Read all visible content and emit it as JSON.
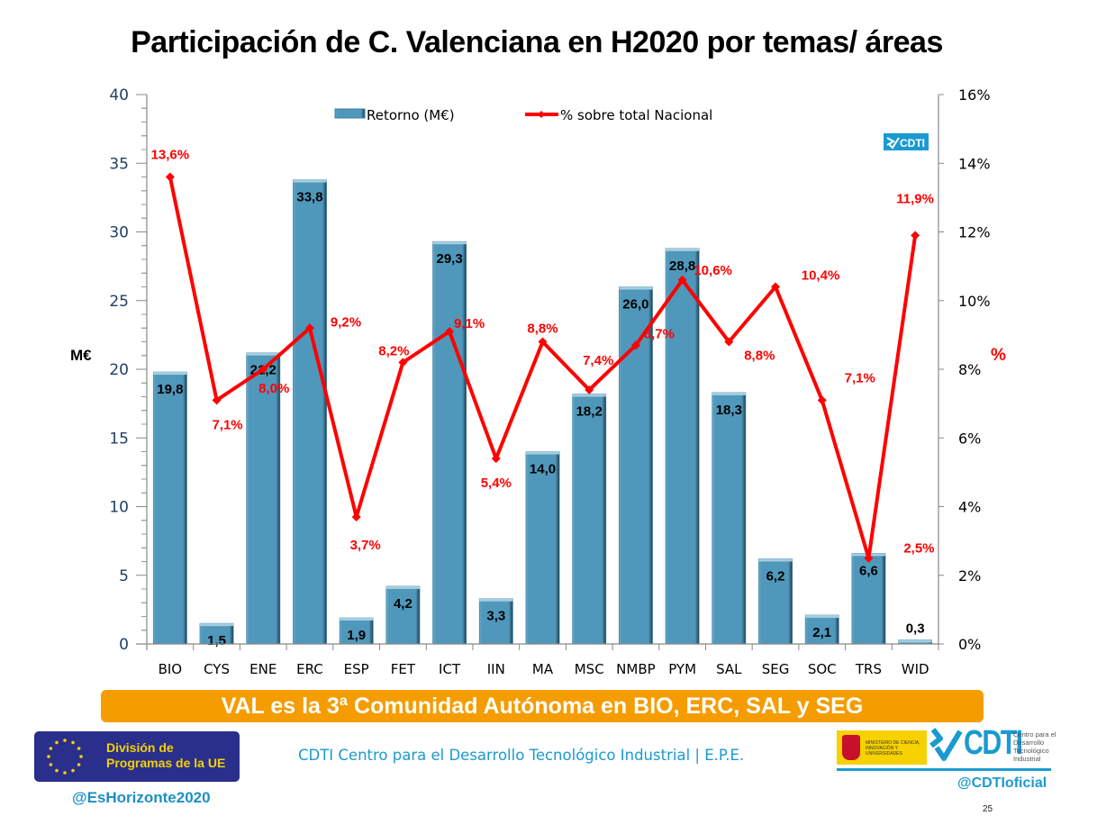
{
  "slide": {
    "title": "Participación de C. Valenciana en H2020 por temas/ áreas",
    "banner": "VAL es la 3ª Comunidad Autónoma en BIO, ERC, SAL y SEG",
    "page_number": "25"
  },
  "footer": {
    "eu_logo_line1": "División de",
    "eu_logo_line2": "Programas de la UE",
    "eu_handle": "@EsHorizonte2020",
    "cdti_text": "CDTI Centro para el Desarrollo Tecnológico Industrial | E.P.E.",
    "ministry_text": "MINISTERIO DE CIENCIA, INNOVACIÓN Y UNIVERSIDADES",
    "cdti_logo_word": "CDTI",
    "cdti_logo_sub": "Centro para el Desarrollo Tecnológico Industrial",
    "cdti_handle": "@CDTIoficial",
    "chart_watermark": "CDTI"
  },
  "colors": {
    "bar": "#4f98bb",
    "line": "#ff0000",
    "banner": "#f59c00",
    "left_axis_text": "#1f3f66",
    "cdti_blue": "#1a9ad0"
  },
  "chart_data": {
    "type": "bar",
    "title": "Participación de C. Valenciana en H2020 por temas/ áreas",
    "categories": [
      "BIO",
      "CYS",
      "ENE",
      "ERC",
      "ESP",
      "FET",
      "ICT",
      "IIN",
      "MA",
      "MSC",
      "NMBP",
      "PYM",
      "SAL",
      "SEG",
      "SOC",
      "TRS",
      "WID"
    ],
    "series": [
      {
        "name": "Retorno (M€)",
        "type": "bar",
        "axis": "left",
        "values": [
          19.8,
          1.5,
          21.2,
          33.8,
          1.9,
          4.2,
          29.3,
          3.3,
          14.0,
          18.2,
          26.0,
          28.8,
          18.3,
          6.2,
          2.1,
          6.6,
          0.3
        ],
        "labels": [
          "19,8",
          "1,5",
          "21,2",
          "33,8",
          "1,9",
          "4,2",
          "29,3",
          "3,3",
          "14,0",
          "18,2",
          "26,0",
          "28,8",
          "18,3",
          "6,2",
          "2,1",
          "6,6",
          "0,3"
        ]
      },
      {
        "name": "% sobre total Nacional",
        "type": "line",
        "axis": "right",
        "values": [
          13.6,
          7.1,
          8.0,
          9.2,
          3.7,
          8.2,
          9.1,
          5.4,
          8.8,
          7.4,
          8.7,
          10.6,
          8.8,
          10.4,
          7.1,
          2.5,
          11.9
        ],
        "labels": [
          "13,6%",
          "7,1%",
          "8,0%",
          "9,2%",
          "3,7%",
          "8,2%",
          "9,1%",
          "5,4%",
          "8,8%",
          "7,4%",
          "8,7%",
          "10,6%",
          "8,8%",
          "10,4%",
          "7,1%",
          "2,5%",
          "11,9%"
        ]
      }
    ],
    "ylabel": "M€",
    "ylim": [
      0,
      40
    ],
    "yticks": [
      "0",
      "5",
      "10",
      "15",
      "20",
      "25",
      "30",
      "35",
      "40"
    ],
    "y2label": "%",
    "y2lim": [
      0,
      16
    ],
    "y2ticks": [
      "0%",
      "2%",
      "4%",
      "6%",
      "8%",
      "10%",
      "12%",
      "14%",
      "16%"
    ],
    "legend": "top-center",
    "grid": false
  }
}
